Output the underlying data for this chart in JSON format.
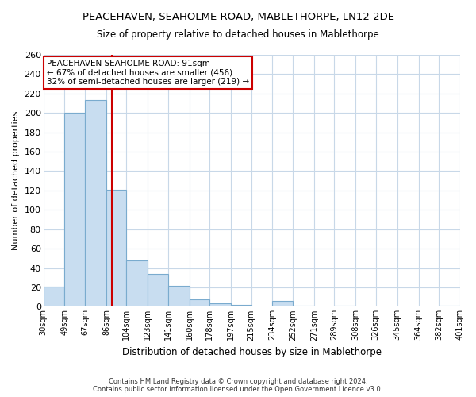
{
  "title": "PEACEHAVEN, SEAHOLME ROAD, MABLETHORPE, LN12 2DE",
  "subtitle": "Size of property relative to detached houses in Mablethorpe",
  "xlabel": "Distribution of detached houses by size in Mablethorpe",
  "ylabel": "Number of detached properties",
  "bar_edges": [
    30,
    49,
    67,
    86,
    104,
    123,
    141,
    160,
    178,
    197,
    215,
    234,
    252,
    271,
    289,
    308,
    326,
    345,
    364,
    382,
    401
  ],
  "bar_heights": [
    21,
    200,
    213,
    121,
    48,
    34,
    22,
    8,
    4,
    2,
    0,
    6,
    1,
    0,
    1,
    0,
    0,
    0,
    0,
    1
  ],
  "bar_facecolor": "#c8ddf0",
  "bar_edgecolor": "#7aabce",
  "vline_x": 91,
  "vline_color": "#cc0000",
  "ylim": [
    0,
    260
  ],
  "yticks": [
    0,
    20,
    40,
    60,
    80,
    100,
    120,
    140,
    160,
    180,
    200,
    220,
    240,
    260
  ],
  "tick_labels": [
    "30sqm",
    "49sqm",
    "67sqm",
    "86sqm",
    "104sqm",
    "123sqm",
    "141sqm",
    "160sqm",
    "178sqm",
    "197sqm",
    "215sqm",
    "234sqm",
    "252sqm",
    "271sqm",
    "289sqm",
    "308sqm",
    "326sqm",
    "345sqm",
    "364sqm",
    "382sqm",
    "401sqm"
  ],
  "annotation_title": "PEACEHAVEN SEAHOLME ROAD: 91sqm",
  "annotation_line1": "← 67% of detached houses are smaller (456)",
  "annotation_line2": "32% of semi-detached houses are larger (219) →",
  "annotation_box_color": "#ffffff",
  "annotation_box_edgecolor": "#cc0000",
  "footer_line1": "Contains HM Land Registry data © Crown copyright and database right 2024.",
  "footer_line2": "Contains public sector information licensed under the Open Government Licence v3.0.",
  "bg_color": "#ffffff",
  "grid_color": "#c8d8e8"
}
